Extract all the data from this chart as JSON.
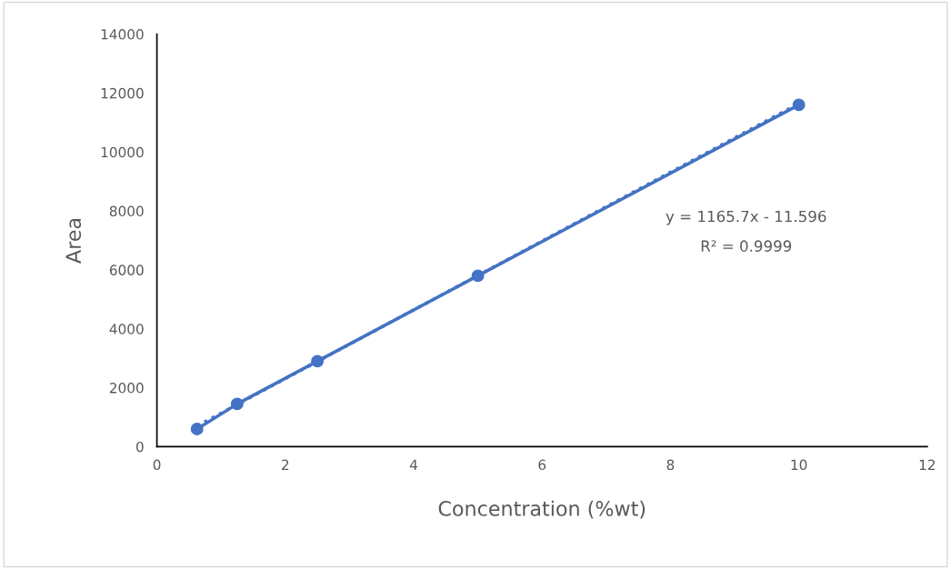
{
  "chart_data": {
    "type": "line",
    "xlabel": "Concentration (%wt)",
    "ylabel": "Area",
    "series": [
      {
        "color": "#4472c4",
        "marker": "circle",
        "line_style": "solid",
        "x": [
          0.625,
          1.25,
          2.5,
          5,
          10
        ],
        "values": [
          600,
          1450,
          2900,
          5800,
          11600
        ]
      },
      {
        "color": "#4472c4",
        "marker": "none",
        "line_style": "dotted",
        "x": [
          0.625,
          10
        ],
        "values": [
          700,
          11650
        ]
      }
    ],
    "xlim": [
      0,
      12
    ],
    "xticks": [
      0,
      2,
      4,
      6,
      8,
      10,
      12
    ],
    "ylim": [
      0,
      14000
    ],
    "yticks": [
      0,
      2000,
      4000,
      6000,
      8000,
      10000,
      12000,
      14000
    ],
    "grid": false,
    "legend": false,
    "annotations": [
      "y = 1165.7x - 11.596",
      "R² = 0.9999"
    ]
  }
}
